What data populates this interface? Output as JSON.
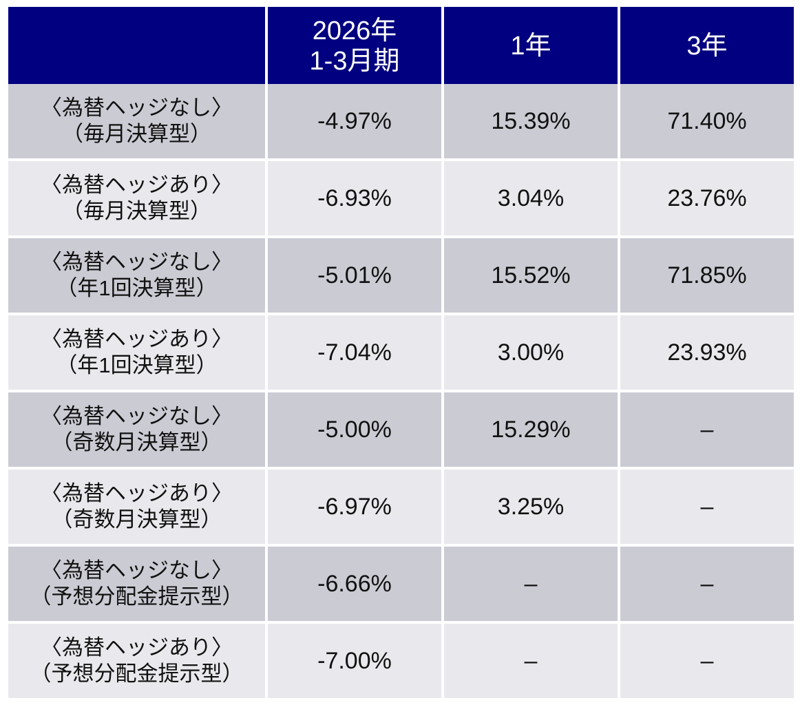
{
  "header": {
    "col0": "",
    "col1_line1": "2026年",
    "col1_line2": "1-3月期",
    "col2": "1年",
    "col3": "3年"
  },
  "rows": [
    {
      "label1": "〈為替ヘッジなし〉",
      "label2": "（毎月決算型）",
      "q": "-4.97%",
      "y1": "15.39%",
      "y3": "71.40%"
    },
    {
      "label1": "〈為替ヘッジあり〉",
      "label2": "（毎月決算型）",
      "q": "-6.93%",
      "y1": "3.04%",
      "y3": "23.76%"
    },
    {
      "label1": "〈為替ヘッジなし〉",
      "label2": "（年1回決算型）",
      "q": "-5.01%",
      "y1": "15.52%",
      "y3": "71.85%"
    },
    {
      "label1": "〈為替ヘッジあり〉",
      "label2": "（年1回決算型）",
      "q": "-7.04%",
      "y1": "3.00%",
      "y3": "23.93%"
    },
    {
      "label1": "〈為替ヘッジなし〉",
      "label2": "（奇数月決算型）",
      "q": "-5.00%",
      "y1": "15.29%",
      "y3": "–"
    },
    {
      "label1": "〈為替ヘッジあり〉",
      "label2": "（奇数月決算型）",
      "q": "-6.97%",
      "y1": "3.25%",
      "y3": "–"
    },
    {
      "label1": "〈為替ヘッジなし〉",
      "label2": "（予想分配金提示型）",
      "q": "-6.66%",
      "y1": "–",
      "y3": "–"
    },
    {
      "label1": "〈為替ヘッジあり〉",
      "label2": "（予想分配金提示型）",
      "q": "-7.00%",
      "y1": "–",
      "y3": "–"
    }
  ],
  "colors": {
    "header_bg": "#000080",
    "row_dark": "#cbcbd4",
    "row_light": "#e9e9ed"
  }
}
